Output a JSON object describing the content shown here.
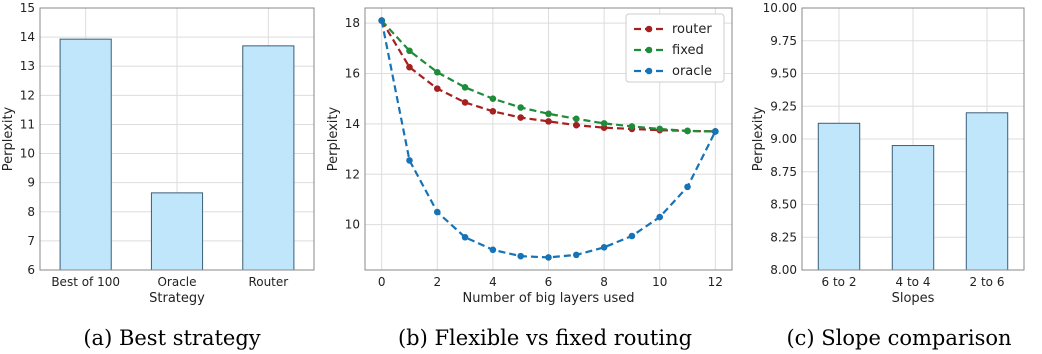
{
  "captions": {
    "a": "(a) Best strategy",
    "b": "(b) Flexible vs fixed routing",
    "c": "(c) Slope comparison"
  },
  "colors": {
    "bar_fill": "#bfe6fb",
    "bar_stroke": "#3a5f78",
    "router": "#a52020",
    "fixed": "#1e8c3a",
    "oracle": "#1673b8",
    "grid": "#dddddd",
    "axis": "#888888"
  },
  "chart_data": [
    {
      "id": "a",
      "type": "bar",
      "categories": [
        "Best of 100",
        "Oracle",
        "Router"
      ],
      "values": [
        13.93,
        8.65,
        13.7
      ],
      "xlabel": "Strategy",
      "ylabel": "Perplexity",
      "ylim": [
        6,
        15
      ],
      "yticks": [
        6,
        7,
        8,
        9,
        10,
        11,
        12,
        13,
        14,
        15
      ],
      "ytick_labels": [
        "6",
        "7",
        "8",
        "9",
        "10",
        "11",
        "12",
        "13",
        "14",
        "15"
      ],
      "grid": true
    },
    {
      "id": "b",
      "type": "line",
      "x": [
        0,
        1,
        2,
        3,
        4,
        5,
        6,
        7,
        8,
        9,
        10,
        11,
        12
      ],
      "series": [
        {
          "name": "router",
          "values": [
            18.1,
            16.25,
            15.4,
            14.85,
            14.5,
            14.25,
            14.1,
            13.95,
            13.85,
            13.8,
            13.75,
            13.72,
            13.7
          ]
        },
        {
          "name": "fixed",
          "values": [
            18.1,
            16.9,
            16.05,
            15.45,
            15.0,
            14.65,
            14.4,
            14.2,
            14.02,
            13.9,
            13.8,
            13.72,
            13.7
          ]
        },
        {
          "name": "oracle",
          "values": [
            18.1,
            12.55,
            10.5,
            9.5,
            9.0,
            8.75,
            8.7,
            8.8,
            9.1,
            9.55,
            10.3,
            11.5,
            13.7
          ]
        }
      ],
      "xlabel": "Number of big layers used",
      "ylabel": "Perplexity",
      "xlim": [
        -0.6,
        12.6
      ],
      "ylim": [
        8.2,
        18.6
      ],
      "xticks": [
        0,
        2,
        4,
        6,
        8,
        10,
        12
      ],
      "xtick_labels": [
        "0",
        "2",
        "4",
        "6",
        "8",
        "10",
        "12"
      ],
      "yticks": [
        10,
        12,
        14,
        16,
        18
      ],
      "ytick_labels": [
        "10",
        "12",
        "14",
        "16",
        "18"
      ],
      "legend": "top-right",
      "grid": true
    },
    {
      "id": "c",
      "type": "bar",
      "categories": [
        "6 to 2",
        "4 to 4",
        "2 to 6"
      ],
      "values": [
        9.12,
        8.95,
        9.2
      ],
      "xlabel": "Slopes",
      "ylabel": "Perplexity",
      "ylim": [
        8.0,
        10.0
      ],
      "yticks": [
        8.0,
        8.25,
        8.5,
        8.75,
        9.0,
        9.25,
        9.5,
        9.75,
        10.0
      ],
      "ytick_labels": [
        "8.00",
        "8.25",
        "8.50",
        "8.75",
        "9.00",
        "9.25",
        "9.50",
        "9.75",
        "10.00"
      ],
      "grid": true
    }
  ]
}
